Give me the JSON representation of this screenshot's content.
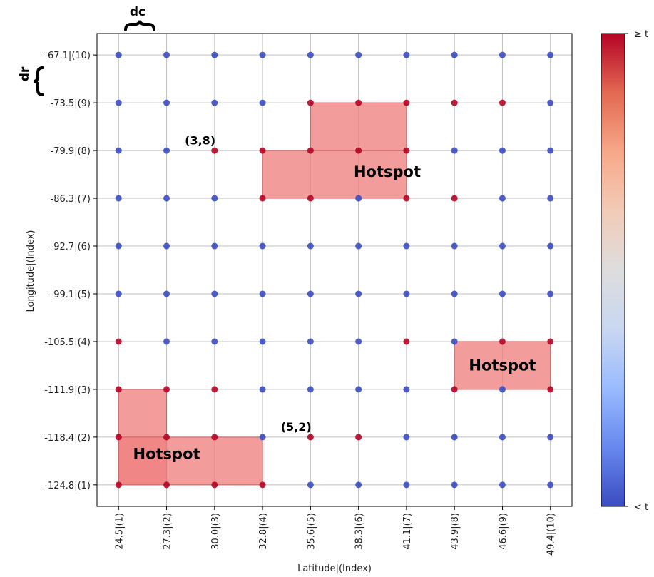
{
  "chart_data": {
    "type": "scatter",
    "title": "",
    "xlabel": "Latitude|(Index)",
    "ylabel": "Longitude|(Index)",
    "x_ticks": [
      "24.5|(1)",
      "27.3|(2)",
      "30.0|(3)",
      "32.8|(4)",
      "35.6|(5)",
      "38.3|(6)",
      "41.1|(7)",
      "43.9|(8)",
      "46.6|(9)",
      "49.4|(10)"
    ],
    "y_ticks": [
      "-124.8|(1)",
      "-118.4|(2)",
      "-111.9|(3)",
      "-105.5|(4)",
      "-99.1|(5)",
      "-92.7|(6)",
      "-86.3|(7)",
      "-79.9|(8)",
      "-73.5|(9)",
      "-67.1|(10)"
    ],
    "xlim": [
      0.55,
      10.45
    ],
    "ylim": [
      0.55,
      10.45
    ],
    "grid": true,
    "points_above_threshold": [
      [
        1,
        1
      ],
      [
        2,
        1
      ],
      [
        3,
        1
      ],
      [
        4,
        1
      ],
      [
        1,
        2
      ],
      [
        2,
        2
      ],
      [
        3,
        2
      ],
      [
        5,
        2
      ],
      [
        6,
        2
      ],
      [
        1,
        3
      ],
      [
        2,
        3
      ],
      [
        3,
        3
      ],
      [
        8,
        3
      ],
      [
        10,
        3
      ],
      [
        1,
        4
      ],
      [
        7,
        4
      ],
      [
        9,
        4
      ],
      [
        10,
        4
      ],
      [
        4,
        7
      ],
      [
        5,
        7
      ],
      [
        7,
        7
      ],
      [
        8,
        7
      ],
      [
        3,
        8
      ],
      [
        4,
        8
      ],
      [
        5,
        8
      ],
      [
        6,
        8
      ],
      [
        7,
        8
      ],
      [
        5,
        9
      ],
      [
        6,
        9
      ],
      [
        7,
        9
      ],
      [
        8,
        9
      ],
      [
        9,
        9
      ]
    ],
    "hotspots": [
      {
        "label": "Hotspot",
        "cells": [
          [
            1,
            2,
            1,
            3
          ],
          [
            1,
            4,
            1,
            2
          ]
        ],
        "label_at": [
          2,
          1.65
        ]
      },
      {
        "label": "Hotspot",
        "cells": [
          [
            4,
            7,
            7,
            8
          ],
          [
            5,
            7,
            8,
            9
          ]
        ],
        "label_at": [
          6.6,
          7.55
        ]
      },
      {
        "label": "Hotspot",
        "cells": [
          [
            8,
            10,
            3,
            4
          ]
        ],
        "label_at": [
          9,
          3.5
        ]
      }
    ],
    "annotations": [
      {
        "text": "(3,8)",
        "x": 2.7,
        "y": 8.22
      },
      {
        "text": "(5,2)",
        "x": 4.7,
        "y": 2.22
      }
    ],
    "brackets": {
      "dc": "dc",
      "dr": "dr"
    },
    "colorbar": {
      "label_top": "≥ t",
      "label_bottom": "< t",
      "colors": [
        "#3b4cc0",
        "#6788ee",
        "#9abbff",
        "#c9d7f0",
        "#dddddd",
        "#f2cbb7",
        "#f7a889",
        "#e26952",
        "#b40426"
      ]
    },
    "colors": {
      "low_point": "#3b4cc0",
      "high_point": "#b40426",
      "hotspot_fill": "#f08080",
      "grid": "#c0c0c0"
    }
  }
}
